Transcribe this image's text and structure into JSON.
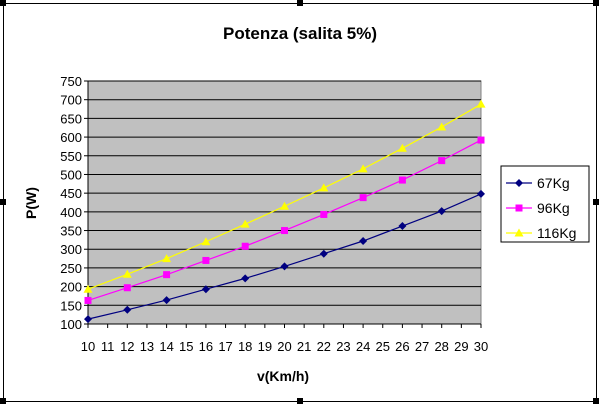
{
  "chart_data": {
    "type": "line",
    "title": "Potenza (salita 5%)",
    "xlabel": "v(Km/h)",
    "ylabel": "P(W)",
    "x": [
      10,
      12,
      14,
      16,
      18,
      20,
      22,
      24,
      26,
      28,
      30
    ],
    "x_ticks": [
      10,
      11,
      12,
      13,
      14,
      15,
      16,
      17,
      18,
      19,
      20,
      21,
      22,
      23,
      24,
      25,
      26,
      27,
      28,
      29,
      30
    ],
    "xlim": [
      10,
      30
    ],
    "ylim": [
      100,
      750
    ],
    "y_ticks": [
      100,
      150,
      200,
      250,
      300,
      350,
      400,
      450,
      500,
      550,
      600,
      650,
      700,
      750
    ],
    "grid": true,
    "legend_position": "right",
    "plot_background": "#c0c0c0",
    "series": [
      {
        "name": "67Kg",
        "color": "#000080",
        "marker": "diamond",
        "values": [
          113,
          138,
          164,
          193,
          222,
          254,
          288,
          322,
          362,
          402,
          448
        ]
      },
      {
        "name": "96Kg",
        "color": "#ff00ff",
        "marker": "square",
        "values": [
          163,
          197,
          232,
          270,
          308,
          350,
          393,
          438,
          485,
          537,
          592
        ]
      },
      {
        "name": "116Kg",
        "color": "#ffff00",
        "marker": "triangle",
        "values": [
          193,
          233,
          275,
          320,
          367,
          415,
          464,
          515,
          570,
          627,
          688
        ]
      }
    ]
  }
}
